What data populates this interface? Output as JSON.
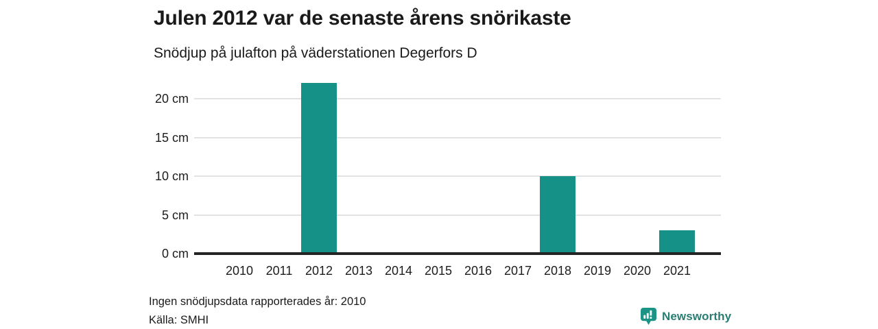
{
  "header": {
    "title": "Julen 2012 var de senaste årens snörikaste",
    "subtitle": "Snödjup på julafton på väderstationen Degerfors D"
  },
  "chart_data": {
    "type": "bar",
    "title": "Julen 2012 var de senaste årens snörikaste",
    "subtitle": "Snödjup på julafton på väderstationen Degerfors D",
    "categories": [
      "2010",
      "2011",
      "2012",
      "2013",
      "2014",
      "2015",
      "2016",
      "2017",
      "2018",
      "2019",
      "2020",
      "2021"
    ],
    "values": [
      null,
      0,
      22,
      0,
      0,
      0,
      0,
      0,
      10,
      0,
      0,
      3
    ],
    "unit": "cm",
    "xlabel": "",
    "ylabel": "",
    "ylim": [
      0,
      22.7
    ],
    "y_ticks": [
      {
        "value": 0,
        "label": "0 cm"
      },
      {
        "value": 5,
        "label": "5 cm"
      },
      {
        "value": 10,
        "label": "10 cm"
      },
      {
        "value": 15,
        "label": "15 cm"
      },
      {
        "value": 20,
        "label": "20 cm"
      }
    ],
    "grid": "horizontal",
    "legend": "none",
    "bar_color": "#169188",
    "gridline_color": "#e2e2e2",
    "baseline_color": "#242424",
    "missing_data_note": "Ingen snödjupsdata rapporterades år: 2010"
  },
  "footer": {
    "note": "Ingen snödjupsdata rapporterades år: 2010",
    "source": "Källa: SMHI"
  },
  "branding": {
    "logo_text": "Newsworthy",
    "logo_icon": "newsworthy-chart-bubble-icon",
    "icon_color": "#1b9486",
    "text_color": "#2a7d72"
  }
}
